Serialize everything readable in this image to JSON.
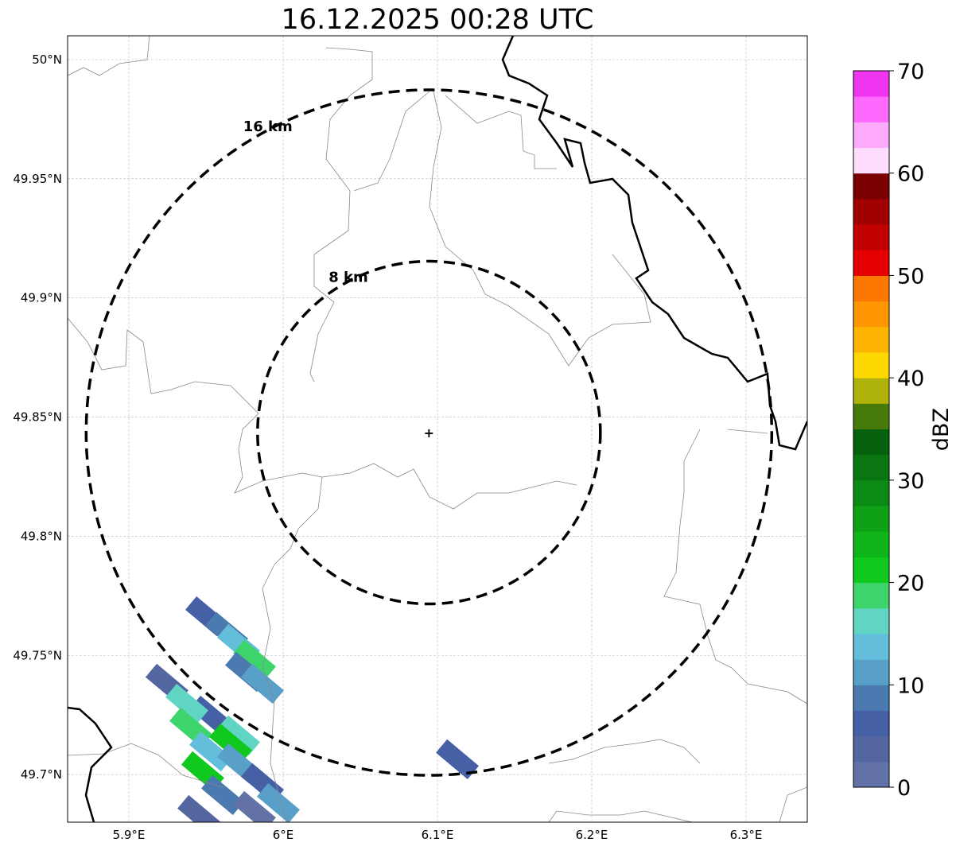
{
  "title": "16.12.2025 00:28 UTC",
  "map": {
    "lon_range": [
      5.86,
      6.34
    ],
    "lat_range": [
      49.68,
      50.01
    ],
    "x_ticks": [
      {
        "value": 5.9,
        "label": "5.9°E"
      },
      {
        "value": 6.0,
        "label": "6°E"
      },
      {
        "value": 6.1,
        "label": "6.1°E"
      },
      {
        "value": 6.2,
        "label": "6.2°E"
      },
      {
        "value": 6.3,
        "label": "6.3°E"
      }
    ],
    "y_ticks": [
      {
        "value": 50.0,
        "label": "50°N"
      },
      {
        "value": 49.95,
        "label": "49.95°N"
      },
      {
        "value": 49.9,
        "label": "49.9°N"
      },
      {
        "value": 49.85,
        "label": "49.85°N"
      },
      {
        "value": 49.8,
        "label": "49.8°N"
      },
      {
        "value": 49.75,
        "label": "49.75°N"
      },
      {
        "value": 49.7,
        "label": "49.7°N"
      }
    ],
    "radar_site": {
      "lon": 6.0945,
      "lat": 49.8435
    },
    "range_rings": [
      {
        "km": 8,
        "label": "8 km"
      },
      {
        "km": 16,
        "label": "16 km"
      }
    ],
    "echoes": [
      {
        "lon": 5.9505,
        "lat": 49.7664,
        "dbz": 6
      },
      {
        "lon": 5.9634,
        "lat": 49.7598,
        "dbz": 9
      },
      {
        "lon": 5.9711,
        "lat": 49.7548,
        "dbz": 13
      },
      {
        "lon": 5.9814,
        "lat": 49.7481,
        "dbz": 18
      },
      {
        "lon": 5.9763,
        "lat": 49.7431,
        "dbz": 8
      },
      {
        "lon": 5.9866,
        "lat": 49.7381,
        "dbz": 11
      },
      {
        "lon": 5.9247,
        "lat": 49.7381,
        "dbz": 4
      },
      {
        "lon": 5.9531,
        "lat": 49.7247,
        "dbz": 7
      },
      {
        "lon": 5.9376,
        "lat": 49.7297,
        "dbz": 16
      },
      {
        "lon": 5.9402,
        "lat": 49.7197,
        "dbz": 19
      },
      {
        "lon": 5.9711,
        "lat": 49.7164,
        "dbz": 15
      },
      {
        "lon": 5.966,
        "lat": 49.713,
        "dbz": 21
      },
      {
        "lon": 5.9531,
        "lat": 49.7097,
        "dbz": 14
      },
      {
        "lon": 5.9479,
        "lat": 49.7014,
        "dbz": 21
      },
      {
        "lon": 5.9711,
        "lat": 49.7047,
        "dbz": 10
      },
      {
        "lon": 5.9866,
        "lat": 49.6964,
        "dbz": 6
      },
      {
        "lon": 5.9608,
        "lat": 49.6914,
        "dbz": 9
      },
      {
        "lon": 5.9969,
        "lat": 49.688,
        "dbz": 12
      },
      {
        "lon": 5.9454,
        "lat": 49.683,
        "dbz": 4
      },
      {
        "lon": 5.9814,
        "lat": 49.6847,
        "dbz": 2
      },
      {
        "lon": 6.1129,
        "lat": 49.7064,
        "dbz": 5
      }
    ]
  },
  "colorbar": {
    "label": "dBZ",
    "ticks": [
      "0",
      "10",
      "20",
      "30",
      "40",
      "50",
      "60",
      "70"
    ],
    "step": 2.5,
    "colors": [
      "#6272a7",
      "#5466a0",
      "#4560a5",
      "#4b7ab1",
      "#58a0c8",
      "#62bedb",
      "#61d5c4",
      "#3ed46c",
      "#10c81e",
      "#0fb418",
      "#0ea116",
      "#0b8b14",
      "#097611",
      "#05610e",
      "#467a0a",
      "#aeb20a",
      "#fcd800",
      "#fdb400",
      "#fd9600",
      "#fd7800",
      "#e40000",
      "#c30000",
      "#a10000",
      "#7a0000",
      "#fddcfd",
      "#fdaafd",
      "#fd6afd",
      "#ef35ef"
    ]
  }
}
